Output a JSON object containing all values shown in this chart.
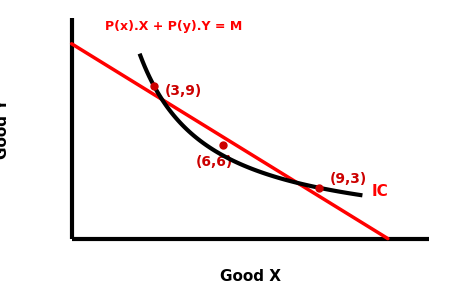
{
  "xlabel": "Good X",
  "ylabel": "Good Y",
  "budget_line_label": "P(x).X + P(y).Y = M",
  "ic_label": "IC",
  "budget_color": "#ff0000",
  "ic_color": "#000000",
  "point_color": "#cc0000",
  "text_color": "#cc0000",
  "axes_color": "#000000",
  "budget_x_start": 0,
  "budget_y_start": 11.5,
  "budget_x_end": 11.5,
  "budget_y_end": 0,
  "ic_x_start": 2.5,
  "ic_x_end": 10.5,
  "ic_k": 27,
  "points_on_curve": [
    [
      3,
      9
    ],
    [
      9,
      3
    ]
  ],
  "point_interior": [
    5.5,
    5.5
  ],
  "point_interior_label": "(6,6)",
  "xlim": [
    -0.5,
    14
  ],
  "ylim": [
    -0.5,
    14
  ],
  "axis_end_x": 13,
  "axis_end_y": 13,
  "budget_lw": 2.5,
  "ic_lw": 3.0,
  "axes_lw": 3.0,
  "label_fontsize": 11,
  "annotation_fontsize": 10,
  "budget_label_fontsize": 9,
  "ic_label_fontsize": 11
}
